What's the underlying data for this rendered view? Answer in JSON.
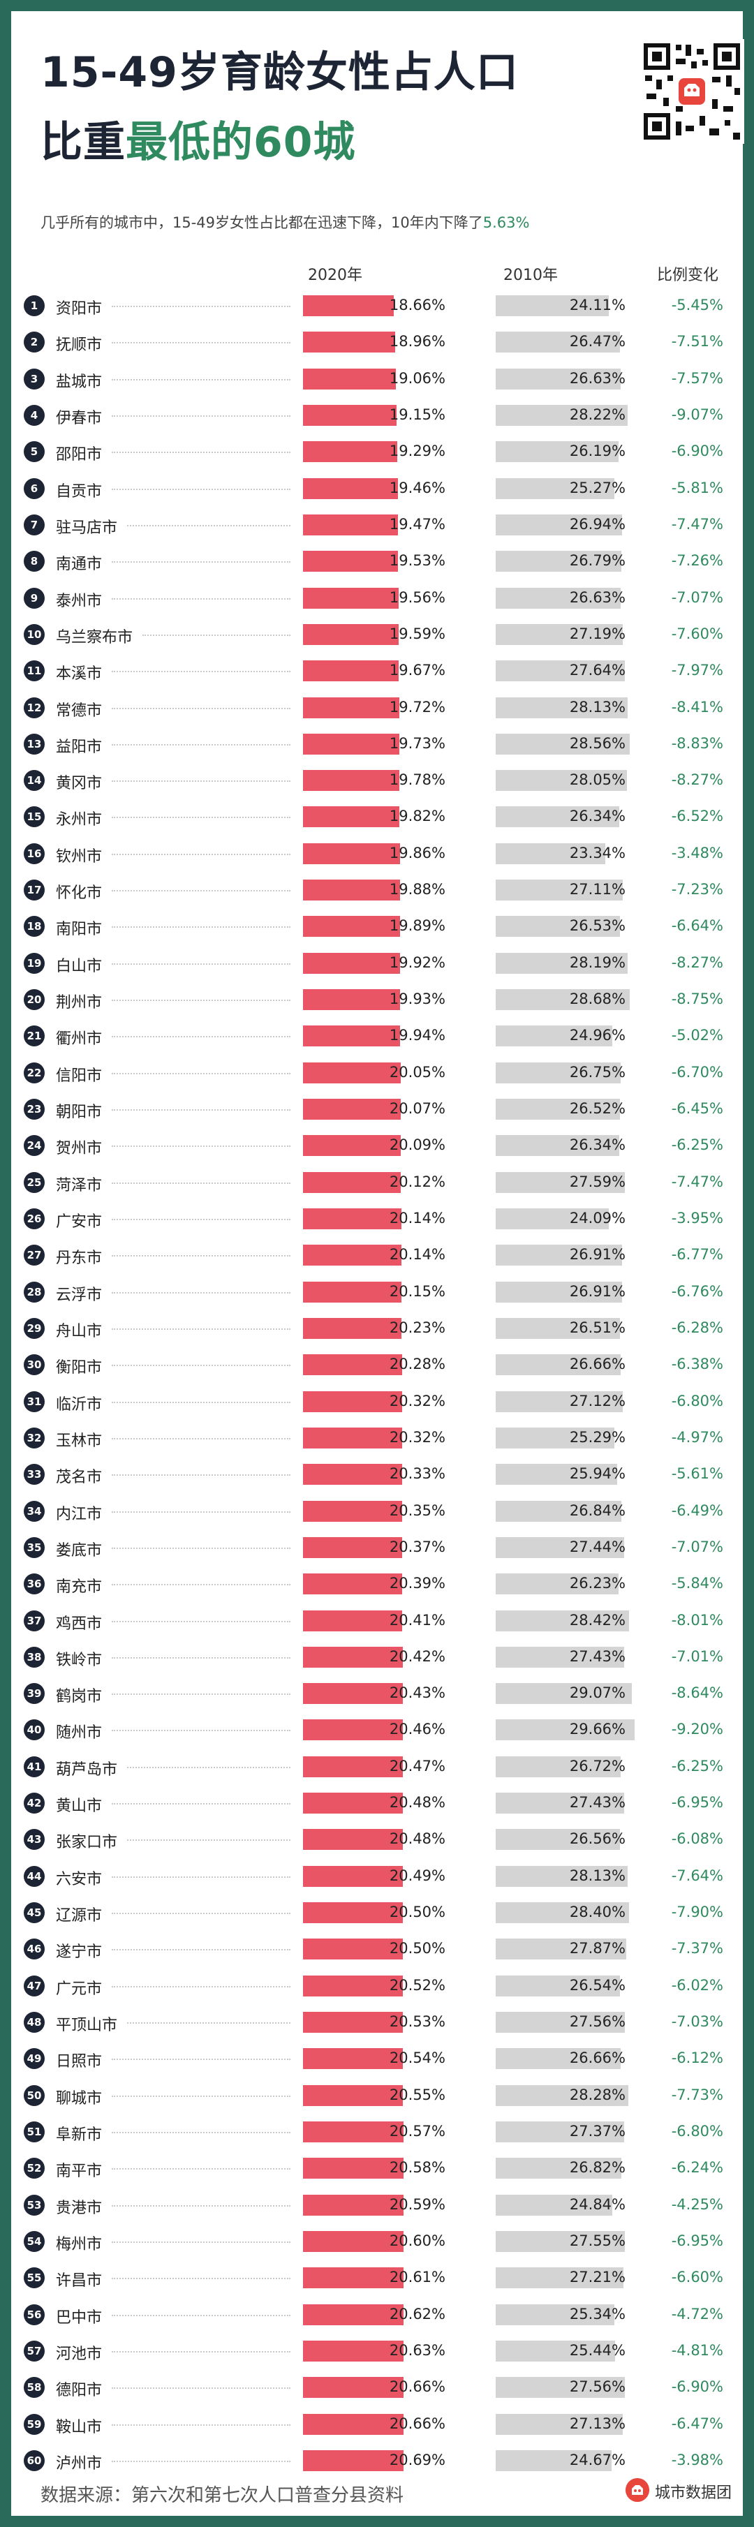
{
  "title": {
    "line1": "15-49岁育龄女性占人口",
    "line2_plain": "比重",
    "line2_highlight": "最低的60城"
  },
  "subtitle": {
    "text": "几乎所有的城市中，15-49岁女性占比都在迅速下降，10年内下降了",
    "pct": "5.63%"
  },
  "columns": {
    "c2020": "2020年",
    "c2010": "2010年",
    "change": "比例变化"
  },
  "footer": {
    "source": "数据来源：第六次和第七次人口普查分县资料",
    "brand": "城市数据团"
  },
  "colors": {
    "bar2020": "#ea5565",
    "bar2010": "#d4d4d4",
    "accent": "#2f8a5f",
    "frame": "#2a6a5a",
    "title": "#1d2433"
  },
  "icons": {
    "qr": "qr-code-icon",
    "brand": "brand-logo-icon"
  },
  "chart_data": {
    "type": "table",
    "series": [
      {
        "name": "2020年",
        "values": [
          18.66,
          18.96,
          19.06,
          19.15,
          19.29,
          19.46,
          19.47,
          19.53,
          19.56,
          19.59,
          19.67,
          19.72,
          19.73,
          19.78,
          19.82,
          19.86,
          19.88,
          19.89,
          19.92,
          19.93,
          19.94,
          20.05,
          20.07,
          20.09,
          20.12,
          20.14,
          20.14,
          20.15,
          20.23,
          20.28,
          20.32,
          20.32,
          20.33,
          20.35,
          20.37,
          20.39,
          20.41,
          20.42,
          20.43,
          20.46,
          20.47,
          20.48,
          20.48,
          20.49,
          20.5,
          20.5,
          20.52,
          20.53,
          20.54,
          20.55,
          20.57,
          20.58,
          20.59,
          20.6,
          20.61,
          20.62,
          20.63,
          20.66,
          20.66,
          20.69
        ]
      },
      {
        "name": "2010年",
        "values": [
          24.11,
          26.47,
          26.63,
          28.22,
          26.19,
          25.27,
          26.94,
          26.79,
          26.63,
          27.19,
          27.64,
          28.13,
          28.56,
          28.05,
          26.34,
          23.34,
          27.11,
          26.53,
          28.19,
          28.68,
          24.96,
          26.75,
          26.52,
          26.34,
          27.59,
          24.09,
          26.91,
          26.91,
          26.51,
          26.66,
          27.12,
          25.29,
          25.94,
          26.84,
          27.44,
          26.23,
          28.42,
          27.43,
          29.07,
          29.66,
          26.72,
          27.43,
          26.56,
          28.13,
          28.4,
          27.87,
          26.54,
          27.56,
          26.66,
          28.28,
          27.37,
          26.82,
          24.84,
          27.55,
          27.21,
          25.34,
          25.44,
          27.56,
          27.13,
          24.67
        ]
      },
      {
        "name": "比例变化",
        "values": [
          -5.45,
          -7.51,
          -7.57,
          -9.07,
          -6.9,
          -5.81,
          -7.47,
          -7.26,
          -7.07,
          -7.6,
          -7.97,
          -8.41,
          -8.83,
          -8.27,
          -6.52,
          -3.48,
          -7.23,
          -6.64,
          -8.27,
          -8.75,
          -5.02,
          -6.7,
          -6.45,
          -6.25,
          -7.47,
          -3.95,
          -6.77,
          -6.76,
          -6.28,
          -6.38,
          -6.8,
          -4.97,
          -5.61,
          -6.49,
          -7.07,
          -5.84,
          -8.01,
          -7.01,
          -8.64,
          -9.2,
          -6.25,
          -6.95,
          -6.08,
          -7.64,
          -7.9,
          -7.37,
          -6.02,
          -7.03,
          -6.12,
          -7.73,
          -6.8,
          -6.24,
          -4.25,
          -6.95,
          -6.6,
          -4.72,
          -4.81,
          -6.9,
          -6.47,
          -3.98
        ]
      }
    ],
    "categories": [
      "资阳市",
      "抚顺市",
      "盐城市",
      "伊春市",
      "邵阳市",
      "自贡市",
      "驻马店市",
      "南通市",
      "泰州市",
      "乌兰察布市",
      "本溪市",
      "常德市",
      "益阳市",
      "黄冈市",
      "永州市",
      "钦州市",
      "怀化市",
      "南阳市",
      "白山市",
      "荆州市",
      "衢州市",
      "信阳市",
      "朝阳市",
      "贺州市",
      "菏泽市",
      "广安市",
      "丹东市",
      "云浮市",
      "舟山市",
      "衡阳市",
      "临沂市",
      "玉林市",
      "茂名市",
      "内江市",
      "娄底市",
      "南充市",
      "鸡西市",
      "铁岭市",
      "鹤岗市",
      "随州市",
      "葫芦岛市",
      "黄山市",
      "张家口市",
      "六安市",
      "辽源市",
      "遂宁市",
      "广元市",
      "平顶山市",
      "日照市",
      "聊城市",
      "阜新市",
      "南平市",
      "贵港市",
      "梅州市",
      "许昌市",
      "巴中市",
      "河池市",
      "德阳市",
      "鞍山市",
      "泸州市"
    ]
  }
}
